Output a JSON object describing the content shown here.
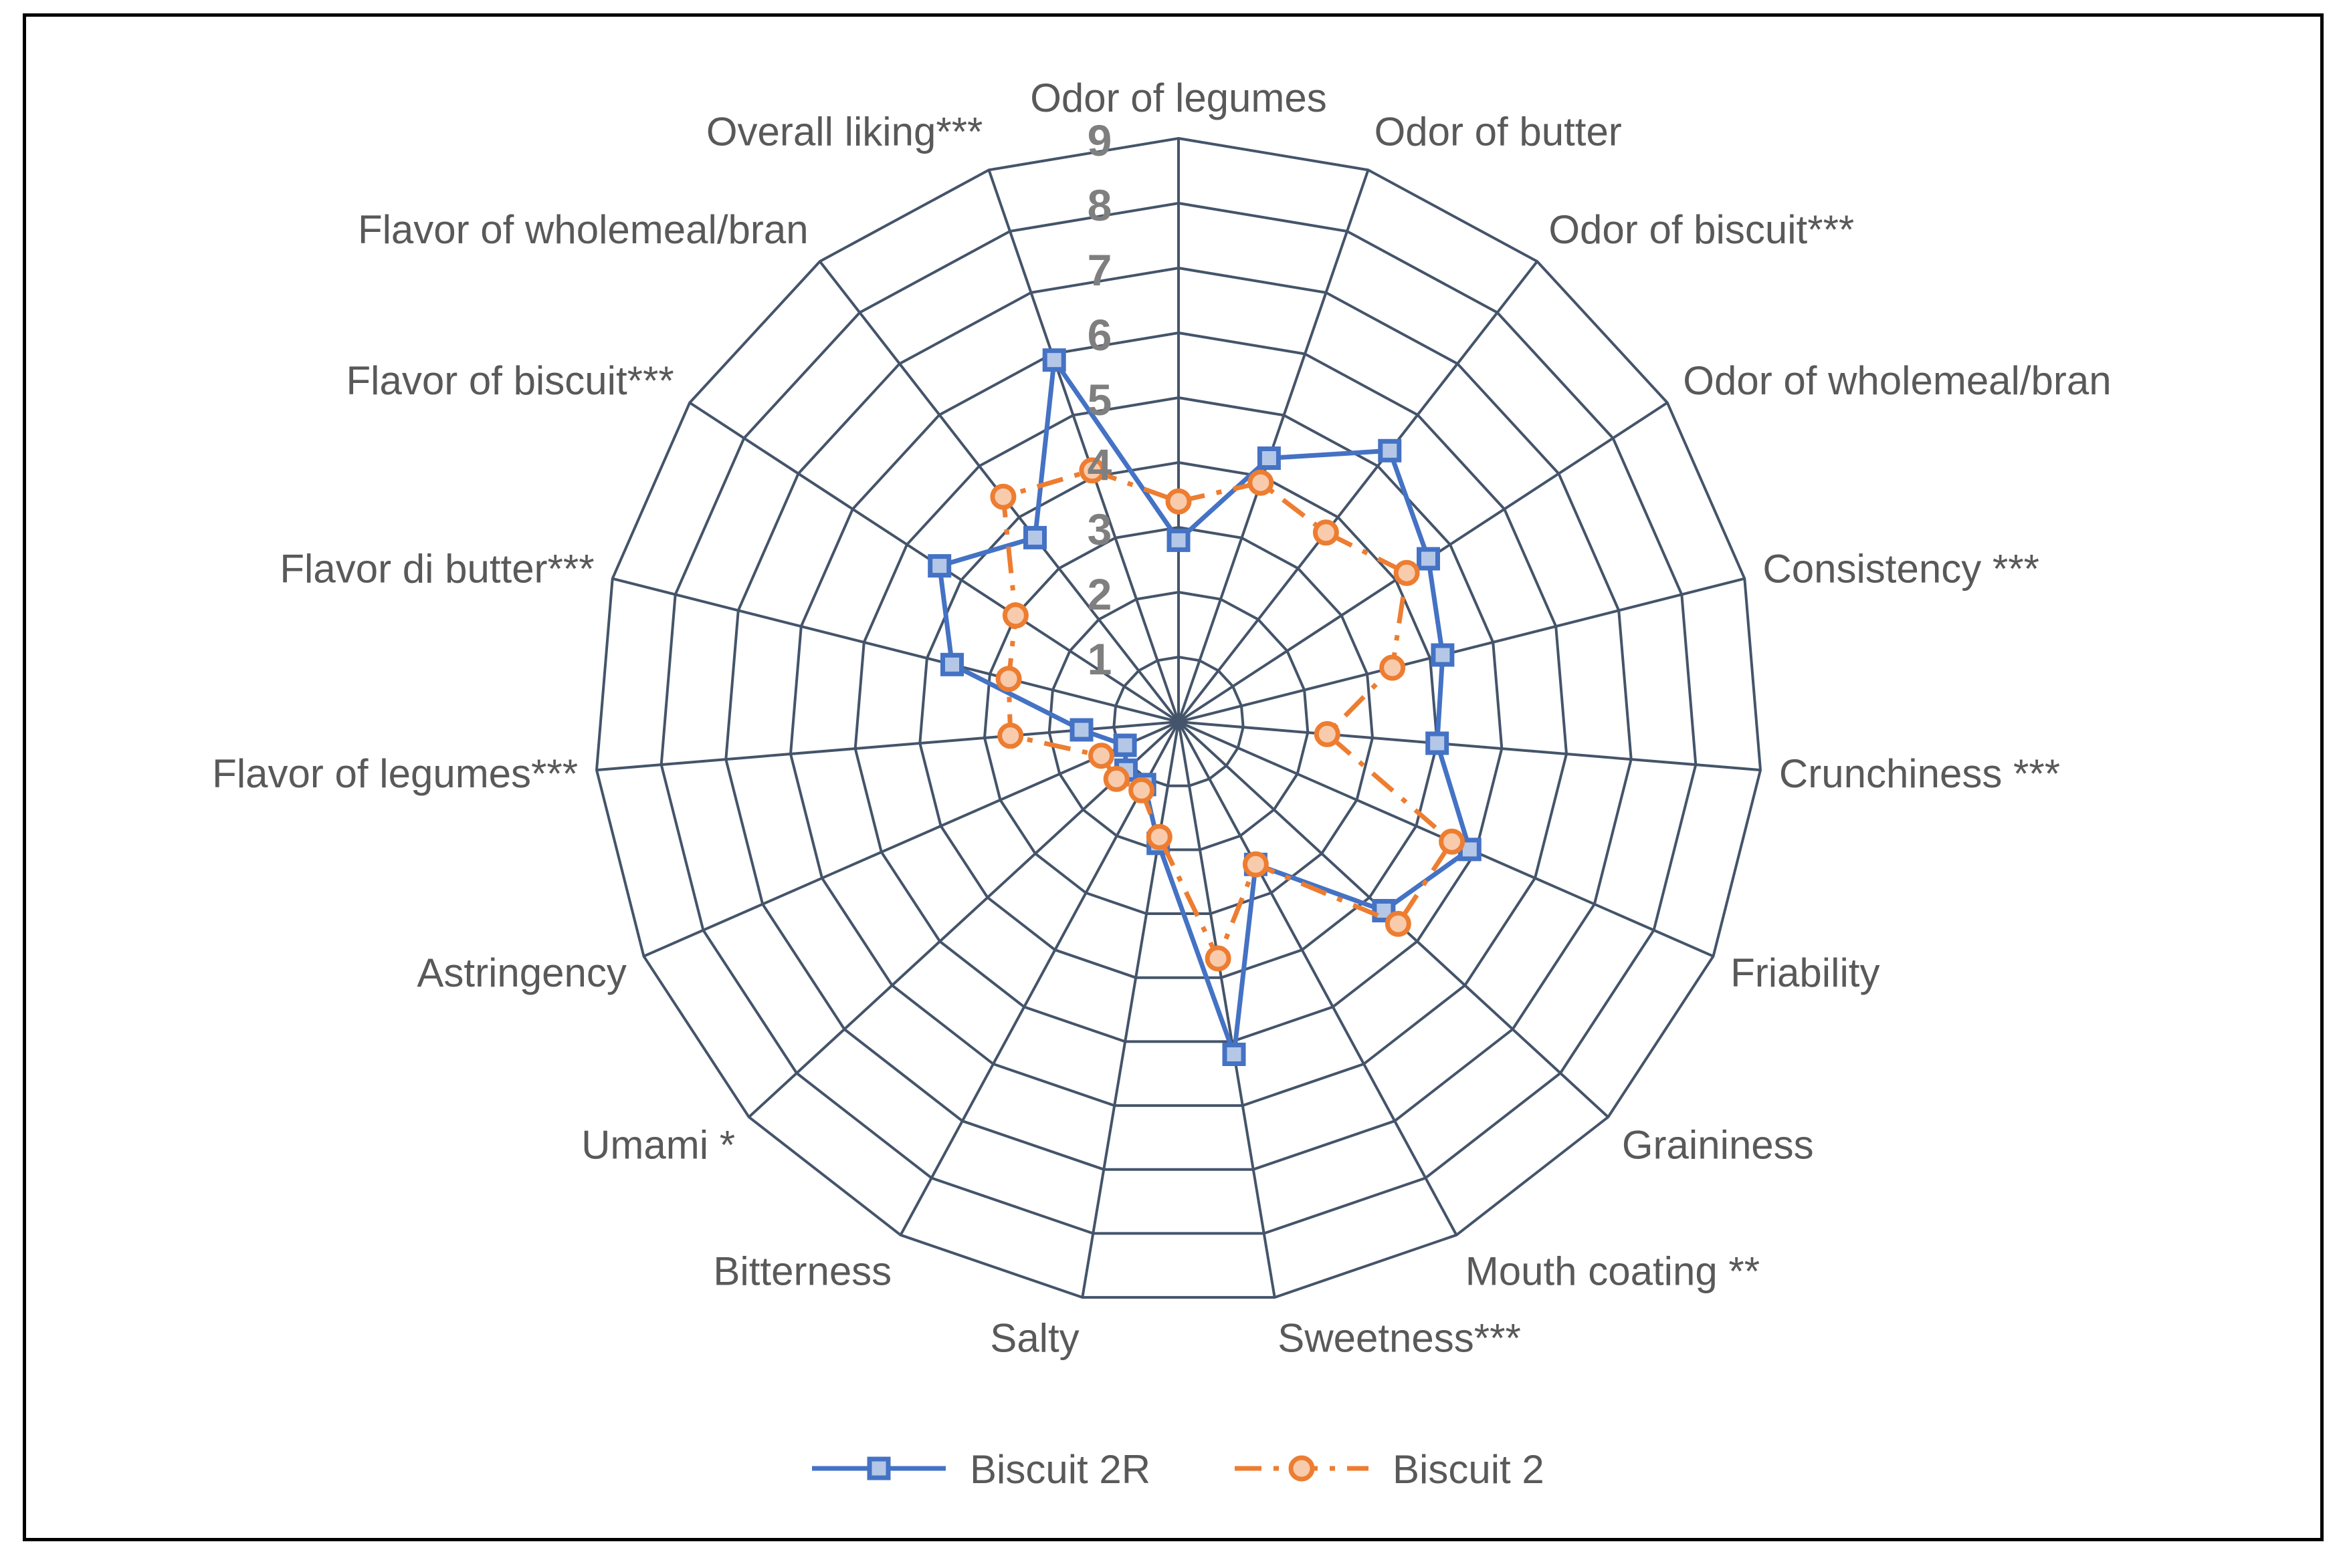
{
  "chart_data": {
    "type": "radar",
    "title": "",
    "categories": [
      "Odor of legumes",
      "Odor of butter",
      "Odor of biscuit***",
      "Odor of wholemeal/bran",
      "Consistency ***",
      "Crunchiness ***",
      "Friability",
      "Graininess",
      "Mouth coating **",
      "Sweetness***",
      "Salty",
      "Bitterness",
      "Umami *",
      "Astringency",
      "Flavor of legumes***",
      "Flavor di butter***",
      "Flavor of biscuit***",
      "Flavor of wholemeal/bran",
      "Overall liking***"
    ],
    "rlim": [
      0,
      9
    ],
    "ticks": [
      "1",
      "2",
      "3",
      "4",
      "5",
      "6",
      "7",
      "8",
      "9"
    ],
    "series": [
      {
        "name": "Biscuit 2R",
        "color": "#4472C4",
        "marker": "square",
        "dash": "solid",
        "values": [
          2.8,
          4.3,
          5.3,
          4.6,
          4.2,
          4.0,
          4.9,
          4.3,
          2.5,
          5.2,
          1.9,
          1.1,
          1.1,
          0.9,
          1.5,
          3.6,
          4.4,
          3.6,
          5.9
        ]
      },
      {
        "name": "Biscuit 2",
        "color": "#ED7D31",
        "marker": "circle",
        "dash": "dash-dot",
        "values": [
          3.4,
          3.9,
          3.7,
          4.2,
          3.4,
          2.3,
          4.6,
          4.6,
          2.5,
          3.7,
          1.8,
          1.2,
          1.3,
          1.3,
          2.6,
          2.7,
          3.0,
          4.4,
          4.1
        ]
      }
    ],
    "legend_position": "bottom"
  }
}
